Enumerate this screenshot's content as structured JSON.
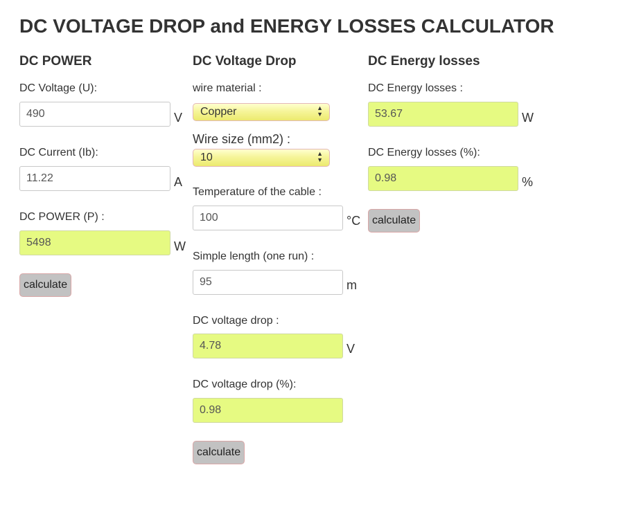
{
  "title": "DC VOLTAGE DROP and ENERGY LOSSES CALCULATOR",
  "power": {
    "heading": "DC POWER",
    "voltage_label": "DC Voltage (U):",
    "voltage_value": "490",
    "voltage_unit": "V",
    "current_label": "DC Current (Ib):",
    "current_value": "11.22",
    "current_unit": "A",
    "power_label": "DC POWER (P) :",
    "power_value": "5498",
    "power_unit": "W",
    "calculate_label": "calculate"
  },
  "drop": {
    "heading": "DC Voltage Drop",
    "material_label": "wire material :",
    "material_value": "Copper",
    "wire_size_label": "Wire size (mm2) :",
    "wire_size_value": "10",
    "temperature_label": "Temperature of the cable :",
    "temperature_value": "100",
    "temperature_unit": "°C",
    "length_label": "Simple length (one run) :",
    "length_value": "95",
    "length_unit": "m",
    "drop_label": "DC voltage drop :",
    "drop_value": "4.78",
    "drop_unit": "V",
    "drop_pct_label": "DC voltage drop (%):",
    "drop_pct_value": "0.98",
    "calculate_label": "calculate"
  },
  "losses": {
    "heading": "DC Energy losses",
    "losses_label": "DC Energy losses :",
    "losses_value": "53.67",
    "losses_unit": "W",
    "losses_pct_label": "DC Energy losses (%):",
    "losses_pct_value": "0.98",
    "losses_pct_unit": "%",
    "calculate_label": "calculate"
  },
  "colors": {
    "result_bg": "#e6fa82",
    "select_bg": "#f6f59a",
    "button_bg": "#c2c2c2"
  },
  "icons": {
    "select_caret": "up-down-arrows-icon"
  }
}
